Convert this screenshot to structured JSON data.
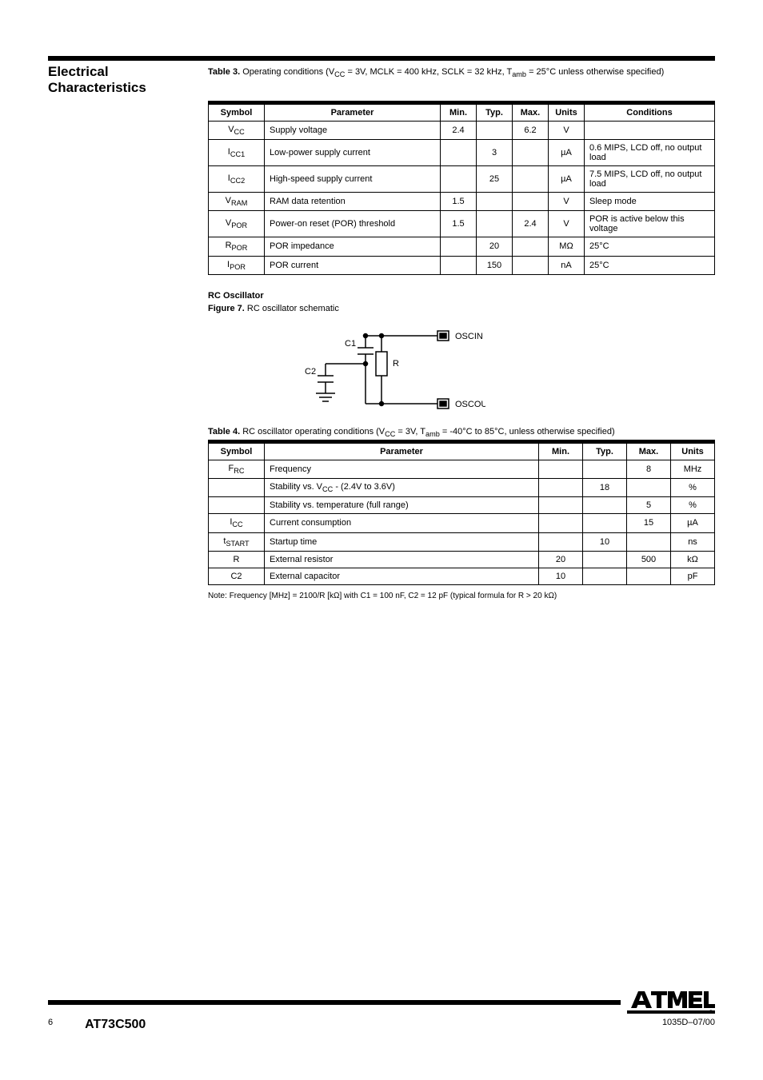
{
  "section": {
    "title": "Electrical Characteristics"
  },
  "t3": {
    "caption_label": "Table 3.",
    "caption_text": "Operating conditions (V",
    "caption_text_sub": "CC",
    "caption_text2": " = 3V, MCLK = 400 kHz, SCLK = 32 kHz, T",
    "caption_text2_sub": "amb",
    "caption_text3": " = 25",
    "caption_deg": "°",
    "caption_text4": "C unless otherwise specified)",
    "headers": [
      "Symbol",
      "Parameter",
      "Min.",
      "Typ.",
      "Max.",
      "Units",
      "Conditions"
    ],
    "rows": [
      {
        "sym": "V",
        "symsub": "CC",
        "param": "Supply voltage",
        "min": "2.4",
        "typ": "",
        "max": "6.2",
        "units": "V",
        "cond": ""
      },
      {
        "sym": "I",
        "symsub": "CC1",
        "param": "Low-power supply current",
        "min": "",
        "typ": "3",
        "max": "",
        "units": "µA",
        "cond": "0.6 MIPS, LCD off, no output load"
      },
      {
        "sym": "I",
        "symsub": "CC2",
        "param": "High-speed supply current",
        "min": "",
        "typ": "25",
        "max": "",
        "units": "µA",
        "cond": "7.5 MIPS, LCD off, no output load"
      },
      {
        "sym": "V",
        "symsub": "RAM",
        "param": "RAM data retention",
        "min": "1.5",
        "typ": "",
        "max": "",
        "units": "V",
        "cond": "Sleep mode"
      },
      {
        "sym": "V",
        "symsub": "POR",
        "param": "Power-on reset (POR) threshold",
        "min": "1.5",
        "typ": "",
        "max": "2.4",
        "units": "V",
        "cond": "POR is active below this voltage"
      },
      {
        "sym": "R",
        "symsub": "POR",
        "param": "POR impedance",
        "min": "",
        "typ": "20",
        "max": "",
        "units": "MΩ",
        "cond": "25°C"
      },
      {
        "sym": "I",
        "symsub": "POR",
        "param": "POR current",
        "min": "",
        "typ": "150",
        "max": "",
        "units": "nA",
        "cond": "25°C"
      }
    ]
  },
  "rc": {
    "sub_title": "RC Oscillator",
    "fig_label": "Figure 7.",
    "fig_text": "RC oscillator schematic",
    "labels": {
      "C1": "C1",
      "C2": "C2",
      "R": "R",
      "OSCIN": "OSCIN",
      "OSCOUT": "OSCOUT"
    }
  },
  "t4": {
    "caption_label": "Table 4.",
    "caption_text": "RC oscillator operating conditions (V",
    "caption_text_sub": "CC",
    "caption_text2": " = 3V, T",
    "caption_text2_sub": "amb",
    "caption_text3": " = -40",
    "caption_deg": "°",
    "caption_text4": "C to 85",
    "caption_text5": "C, unless otherwise specified)",
    "headers": [
      "Symbol",
      "Parameter",
      "Min.",
      "Typ.",
      "Max.",
      "Units"
    ],
    "rows": [
      {
        "sym": "F",
        "symsub": "RC",
        "param": "Frequency",
        "min": "",
        "typ": "",
        "max": "8",
        "units": "MHz"
      },
      {
        "sym": "",
        "symsub": "",
        "param": "Stability vs. V",
        "paramsub": "CC",
        "param2": " - (2.4V to 3.6V)",
        "min": "",
        "typ": "18",
        "max": "",
        "units": "%"
      },
      {
        "sym": "",
        "symsub": "",
        "param": "Stability vs. temperature (full range)",
        "paramsub": "",
        "param2": "",
        "min": "",
        "typ": "",
        "max": "5",
        "units": "%"
      },
      {
        "sym": "I",
        "symsub": "CC",
        "param": "Current consumption",
        "min": "",
        "typ": "",
        "max": "15",
        "units": "µA"
      },
      {
        "sym": "t",
        "symsub": "START",
        "param": "Startup time",
        "min": "",
        "typ": "10",
        "max": "",
        "units": "ns"
      },
      {
        "sym": "R",
        "symsub": "",
        "param": "External resistor",
        "min": "20",
        "typ": "",
        "max": "500",
        "units": "kΩ"
      },
      {
        "sym": "C2",
        "symsub": "",
        "param": "External capacitor",
        "min": "10",
        "typ": "",
        "max": "",
        "units": "pF"
      }
    ],
    "footnote_label": "Note:",
    "footnote_text": "Frequency [MHz] = 2100/R [kΩ] with C1 = 100 nF, C2 = 12 pF (typical formula for R > 20 kΩ)"
  },
  "footer": {
    "page": "6",
    "doc": "AT73C500",
    "rev": "1035D–07/00"
  },
  "colors": {
    "rule": "#000000",
    "text": "#000000",
    "bg": "#ffffff"
  }
}
